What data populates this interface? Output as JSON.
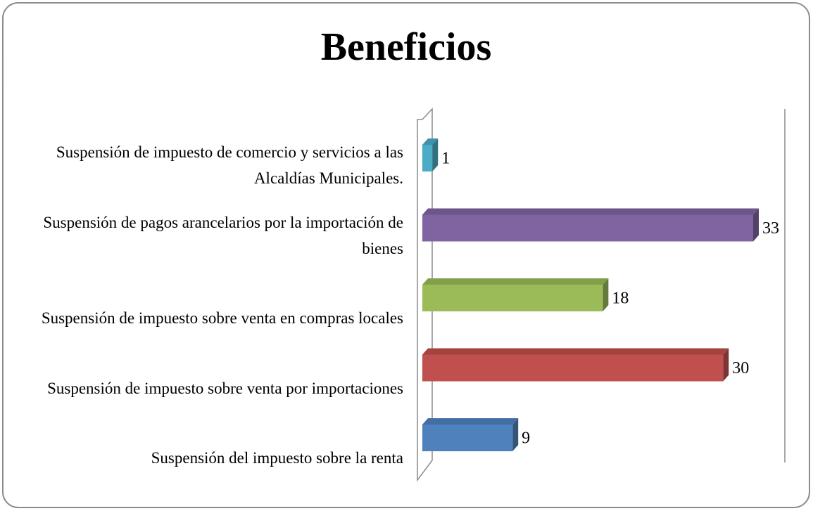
{
  "chart_data": {
    "type": "bar",
    "orientation": "horizontal",
    "title": "Beneficios",
    "categories": [
      "Suspensión de impuesto de comercio y servicios a las Alcaldías Municipales.",
      "Suspensión de pagos arancelarios por la importación de bienes",
      "Suspensión de impuesto sobre venta en compras locales",
      "Suspensión de impuesto sobre venta por importaciones",
      "Suspensión del impuesto sobre la renta"
    ],
    "values": [
      1,
      33,
      18,
      30,
      9
    ],
    "colors": [
      "#4bacc6",
      "#8064a2",
      "#9bbb59",
      "#c0504d",
      "#4f81bd"
    ]
  }
}
